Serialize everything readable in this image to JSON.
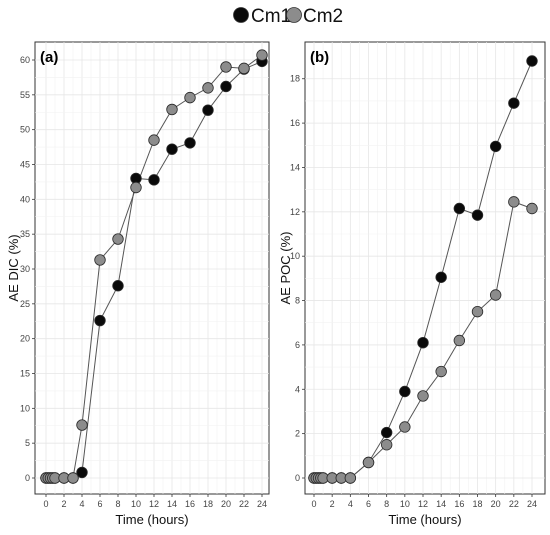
{
  "legend": {
    "position": "top-center",
    "entries": [
      {
        "label": "Cm1",
        "color": "#0a0a0a"
      },
      {
        "label": "Cm2",
        "color": "#8c8c8c"
      }
    ]
  },
  "chart_data": [
    {
      "type": "line",
      "panel_label": "(a)",
      "xlabel": "Time (hours)",
      "ylabel": "AE DIC (%)",
      "xlim": [
        0,
        24
      ],
      "ylim": [
        0,
        60
      ],
      "xticks": [
        0,
        2,
        4,
        6,
        8,
        10,
        12,
        14,
        16,
        18,
        20,
        22,
        24
      ],
      "yticks": [
        0,
        5,
        10,
        15,
        20,
        25,
        30,
        35,
        40,
        45,
        50,
        55,
        60
      ],
      "grid": true,
      "series": [
        {
          "name": "Cm1",
          "color": "#0a0a0a",
          "x": [
            0,
            0.25,
            0.5,
            0.75,
            1,
            2,
            3,
            4,
            6,
            8,
            10,
            12,
            14,
            16,
            18,
            20,
            22,
            24
          ],
          "y": [
            0,
            0,
            0,
            0,
            0,
            0,
            0,
            0.8,
            22.6,
            27.6,
            43.0,
            42.8,
            47.2,
            48.1,
            52.8,
            56.2,
            58.7,
            59.8
          ]
        },
        {
          "name": "Cm2",
          "color": "#8c8c8c",
          "x": [
            0,
            0.25,
            0.5,
            0.75,
            1,
            2,
            3,
            4,
            6,
            8,
            10,
            12,
            14,
            16,
            18,
            20,
            22,
            24
          ],
          "y": [
            0,
            0,
            0,
            0,
            0,
            0,
            0,
            7.6,
            31.3,
            34.3,
            41.7,
            48.5,
            52.9,
            54.6,
            56.0,
            59.0,
            58.8,
            60.7
          ]
        }
      ]
    },
    {
      "type": "line",
      "panel_label": "(b)",
      "xlabel": "Time (hours)",
      "ylabel": "AE POC (%)",
      "xlim": [
        0,
        24
      ],
      "ylim": [
        0,
        18.8
      ],
      "xticks": [
        0,
        2,
        4,
        6,
        8,
        10,
        12,
        14,
        16,
        18,
        20,
        22,
        24
      ],
      "yticks": [
        0,
        2,
        4,
        6,
        8,
        10,
        12,
        14,
        16,
        18
      ],
      "grid": true,
      "series": [
        {
          "name": "Cm1",
          "color": "#0a0a0a",
          "x": [
            0,
            0.25,
            0.5,
            0.75,
            1,
            2,
            3,
            4,
            6,
            8,
            10,
            12,
            14,
            16,
            18,
            20,
            22,
            24
          ],
          "y": [
            0,
            0,
            0,
            0,
            0,
            0,
            0,
            0,
            0.7,
            2.05,
            3.9,
            6.1,
            9.05,
            12.15,
            11.85,
            14.95,
            16.9,
            18.8
          ]
        },
        {
          "name": "Cm2",
          "color": "#8c8c8c",
          "x": [
            0,
            0.25,
            0.5,
            0.75,
            1,
            2,
            3,
            4,
            6,
            8,
            10,
            12,
            14,
            16,
            18,
            20,
            22,
            24
          ],
          "y": [
            0,
            0,
            0,
            0,
            0,
            0,
            0,
            0,
            0.7,
            1.5,
            2.3,
            3.7,
            4.8,
            6.2,
            7.5,
            8.25,
            12.45,
            12.15
          ]
        }
      ]
    }
  ]
}
